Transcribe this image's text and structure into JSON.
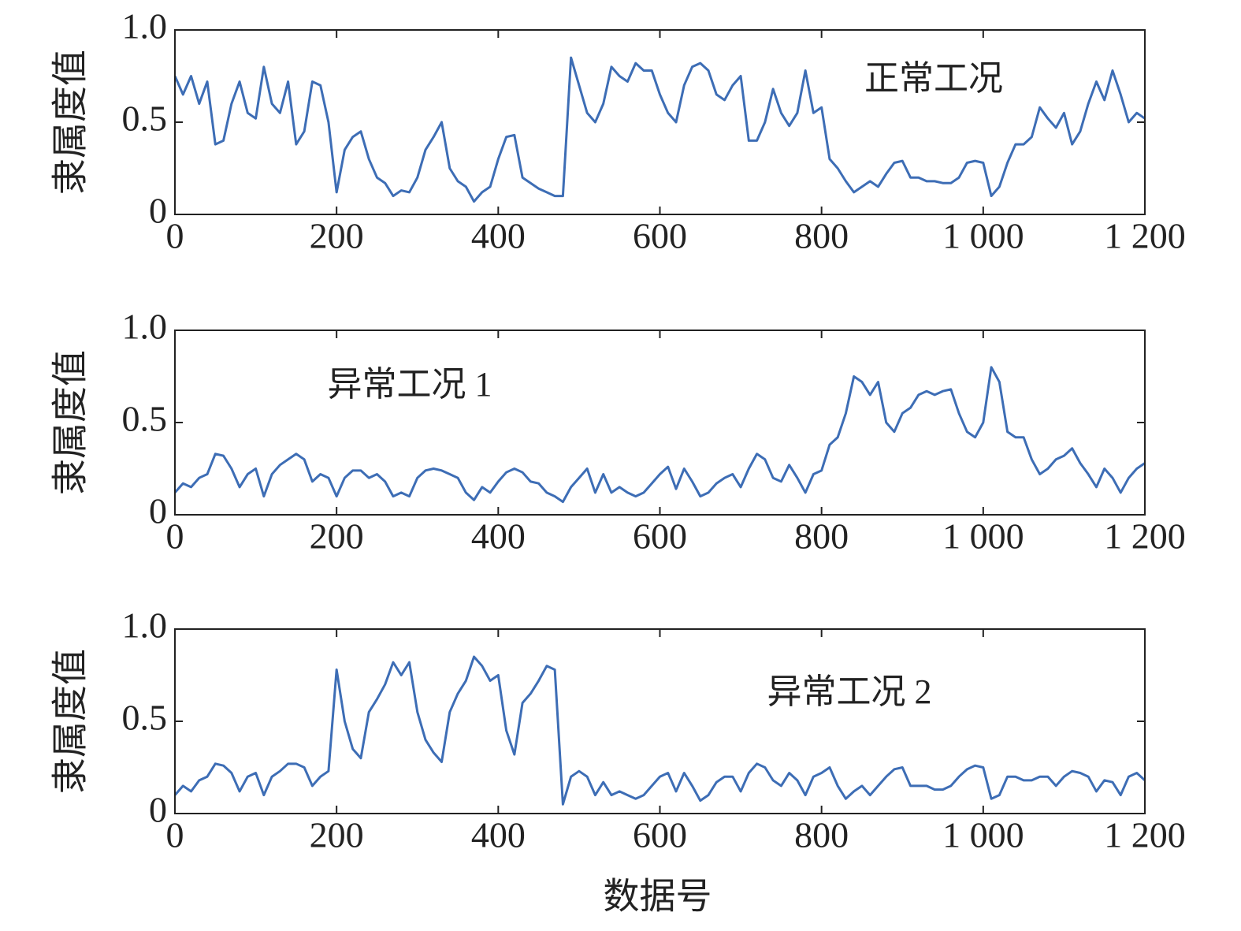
{
  "chart_data": [
    {
      "type": "line",
      "annotation": "正常工况",
      "ylabel": "隶属度值",
      "x": [
        0,
        10,
        20,
        30,
        40,
        50,
        60,
        70,
        80,
        90,
        100,
        110,
        120,
        130,
        140,
        150,
        160,
        170,
        180,
        190,
        200,
        210,
        220,
        230,
        240,
        250,
        260,
        270,
        280,
        290,
        300,
        310,
        320,
        330,
        340,
        350,
        360,
        370,
        380,
        390,
        400,
        410,
        420,
        430,
        440,
        450,
        460,
        470,
        480,
        490,
        500,
        510,
        520,
        530,
        540,
        550,
        560,
        570,
        580,
        590,
        600,
        610,
        620,
        630,
        640,
        650,
        660,
        670,
        680,
        690,
        700,
        710,
        720,
        730,
        740,
        750,
        760,
        770,
        780,
        790,
        800,
        810,
        820,
        830,
        840,
        850,
        860,
        870,
        880,
        890,
        900,
        910,
        920,
        930,
        940,
        950,
        960,
        970,
        980,
        990,
        1000,
        1010,
        1020,
        1030,
        1040,
        1050,
        1060,
        1070,
        1080,
        1090,
        1100,
        1110,
        1120,
        1130,
        1140,
        1150,
        1160,
        1170,
        1180,
        1190,
        1200
      ],
      "series": [
        {
          "color": "#3d6db5",
          "values": [
            0.75,
            0.65,
            0.75,
            0.6,
            0.72,
            0.38,
            0.4,
            0.6,
            0.72,
            0.55,
            0.52,
            0.8,
            0.6,
            0.55,
            0.72,
            0.38,
            0.45,
            0.72,
            0.7,
            0.5,
            0.12,
            0.35,
            0.42,
            0.45,
            0.3,
            0.2,
            0.17,
            0.1,
            0.13,
            0.12,
            0.2,
            0.35,
            0.42,
            0.5,
            0.25,
            0.18,
            0.15,
            0.07,
            0.12,
            0.15,
            0.3,
            0.42,
            0.43,
            0.2,
            0.17,
            0.14,
            0.12,
            0.1,
            0.1,
            0.85,
            0.7,
            0.55,
            0.5,
            0.6,
            0.8,
            0.75,
            0.72,
            0.82,
            0.78,
            0.78,
            0.65,
            0.55,
            0.5,
            0.7,
            0.8,
            0.82,
            0.78,
            0.65,
            0.62,
            0.7,
            0.75,
            0.4,
            0.4,
            0.5,
            0.68,
            0.55,
            0.48,
            0.55,
            0.78,
            0.55,
            0.58,
            0.3,
            0.25,
            0.18,
            0.12,
            0.15,
            0.18,
            0.15,
            0.22,
            0.28,
            0.29,
            0.2,
            0.2,
            0.18,
            0.18,
            0.17,
            0.17,
            0.2,
            0.28,
            0.29,
            0.28,
            0.1,
            0.15,
            0.28,
            0.38,
            0.38,
            0.42,
            0.58,
            0.52,
            0.47,
            0.55,
            0.38,
            0.45,
            0.6,
            0.72,
            0.62,
            0.78,
            0.65,
            0.5,
            0.55,
            0.52
          ]
        }
      ],
      "xlim": [
        0,
        1200
      ],
      "xticks": [
        0,
        200,
        400,
        600,
        800,
        {
          "value": 1000,
          "label": "1 000"
        },
        {
          "value": 1200,
          "label": "1 200"
        }
      ],
      "ylim": [
        0,
        1
      ],
      "yticks": [
        0,
        0.5,
        {
          "value": 1,
          "label": "1.0"
        }
      ]
    },
    {
      "type": "line",
      "annotation": "异常工况 1",
      "ylabel": "隶属度值",
      "x": [
        0,
        10,
        20,
        30,
        40,
        50,
        60,
        70,
        80,
        90,
        100,
        110,
        120,
        130,
        140,
        150,
        160,
        170,
        180,
        190,
        200,
        210,
        220,
        230,
        240,
        250,
        260,
        270,
        280,
        290,
        300,
        310,
        320,
        330,
        340,
        350,
        360,
        370,
        380,
        390,
        400,
        410,
        420,
        430,
        440,
        450,
        460,
        470,
        480,
        490,
        500,
        510,
        520,
        530,
        540,
        550,
        560,
        570,
        580,
        590,
        600,
        610,
        620,
        630,
        640,
        650,
        660,
        670,
        680,
        690,
        700,
        710,
        720,
        730,
        740,
        750,
        760,
        770,
        780,
        790,
        800,
        810,
        820,
        830,
        840,
        850,
        860,
        870,
        880,
        890,
        900,
        910,
        920,
        930,
        940,
        950,
        960,
        970,
        980,
        990,
        1000,
        1010,
        1020,
        1030,
        1040,
        1050,
        1060,
        1070,
        1080,
        1090,
        1100,
        1110,
        1120,
        1130,
        1140,
        1150,
        1160,
        1170,
        1180,
        1190,
        1200
      ],
      "series": [
        {
          "color": "#3d6db5",
          "values": [
            0.12,
            0.17,
            0.15,
            0.2,
            0.22,
            0.33,
            0.32,
            0.25,
            0.15,
            0.22,
            0.25,
            0.1,
            0.22,
            0.27,
            0.3,
            0.33,
            0.3,
            0.18,
            0.22,
            0.2,
            0.1,
            0.2,
            0.24,
            0.24,
            0.2,
            0.22,
            0.18,
            0.1,
            0.12,
            0.1,
            0.2,
            0.24,
            0.25,
            0.24,
            0.22,
            0.2,
            0.12,
            0.08,
            0.15,
            0.12,
            0.18,
            0.23,
            0.25,
            0.23,
            0.18,
            0.17,
            0.12,
            0.1,
            0.07,
            0.15,
            0.2,
            0.25,
            0.12,
            0.22,
            0.12,
            0.15,
            0.12,
            0.1,
            0.12,
            0.17,
            0.22,
            0.26,
            0.14,
            0.25,
            0.18,
            0.1,
            0.12,
            0.17,
            0.2,
            0.22,
            0.15,
            0.25,
            0.33,
            0.3,
            0.2,
            0.18,
            0.27,
            0.2,
            0.12,
            0.22,
            0.24,
            0.38,
            0.42,
            0.55,
            0.75,
            0.72,
            0.65,
            0.72,
            0.5,
            0.45,
            0.55,
            0.58,
            0.65,
            0.67,
            0.65,
            0.67,
            0.68,
            0.55,
            0.45,
            0.42,
            0.5,
            0.8,
            0.72,
            0.45,
            0.42,
            0.42,
            0.3,
            0.22,
            0.25,
            0.3,
            0.32,
            0.36,
            0.28,
            0.22,
            0.15,
            0.25,
            0.2,
            0.12,
            0.2,
            0.25,
            0.28
          ]
        }
      ],
      "xlim": [
        0,
        1200
      ],
      "xticks": [
        0,
        200,
        400,
        600,
        800,
        {
          "value": 1000,
          "label": "1 000"
        },
        {
          "value": 1200,
          "label": "1 200"
        }
      ],
      "ylim": [
        0,
        1
      ],
      "yticks": [
        0,
        0.5,
        {
          "value": 1,
          "label": "1.0"
        }
      ]
    },
    {
      "type": "line",
      "annotation": "异常工况 2",
      "ylabel": "隶属度值",
      "xlabel": "数据号",
      "x": [
        0,
        10,
        20,
        30,
        40,
        50,
        60,
        70,
        80,
        90,
        100,
        110,
        120,
        130,
        140,
        150,
        160,
        170,
        180,
        190,
        200,
        210,
        220,
        230,
        240,
        250,
        260,
        270,
        280,
        290,
        300,
        310,
        320,
        330,
        340,
        350,
        360,
        370,
        380,
        390,
        400,
        410,
        420,
        430,
        440,
        450,
        460,
        470,
        480,
        490,
        500,
        510,
        520,
        530,
        540,
        550,
        560,
        570,
        580,
        590,
        600,
        610,
        620,
        630,
        640,
        650,
        660,
        670,
        680,
        690,
        700,
        710,
        720,
        730,
        740,
        750,
        760,
        770,
        780,
        790,
        800,
        810,
        820,
        830,
        840,
        850,
        860,
        870,
        880,
        890,
        900,
        910,
        920,
        930,
        940,
        950,
        960,
        970,
        980,
        990,
        1000,
        1010,
        1020,
        1030,
        1040,
        1050,
        1060,
        1070,
        1080,
        1090,
        1100,
        1110,
        1120,
        1130,
        1140,
        1150,
        1160,
        1170,
        1180,
        1190,
        1200
      ],
      "series": [
        {
          "color": "#3d6db5",
          "values": [
            0.1,
            0.15,
            0.12,
            0.18,
            0.2,
            0.27,
            0.26,
            0.22,
            0.12,
            0.2,
            0.22,
            0.1,
            0.2,
            0.23,
            0.27,
            0.27,
            0.25,
            0.15,
            0.2,
            0.23,
            0.78,
            0.5,
            0.35,
            0.3,
            0.55,
            0.62,
            0.7,
            0.82,
            0.75,
            0.82,
            0.55,
            0.4,
            0.33,
            0.28,
            0.55,
            0.65,
            0.72,
            0.85,
            0.8,
            0.72,
            0.75,
            0.45,
            0.32,
            0.6,
            0.65,
            0.72,
            0.8,
            0.78,
            0.05,
            0.2,
            0.23,
            0.2,
            0.1,
            0.17,
            0.1,
            0.12,
            0.1,
            0.08,
            0.1,
            0.15,
            0.2,
            0.22,
            0.12,
            0.22,
            0.15,
            0.07,
            0.1,
            0.17,
            0.2,
            0.2,
            0.12,
            0.22,
            0.27,
            0.25,
            0.18,
            0.15,
            0.22,
            0.18,
            0.1,
            0.2,
            0.22,
            0.25,
            0.15,
            0.08,
            0.12,
            0.15,
            0.1,
            0.15,
            0.2,
            0.24,
            0.25,
            0.15,
            0.15,
            0.15,
            0.13,
            0.13,
            0.15,
            0.2,
            0.24,
            0.26,
            0.25,
            0.08,
            0.1,
            0.2,
            0.2,
            0.18,
            0.18,
            0.2,
            0.2,
            0.15,
            0.2,
            0.23,
            0.22,
            0.2,
            0.12,
            0.18,
            0.17,
            0.1,
            0.2,
            0.22,
            0.18
          ]
        }
      ],
      "xlim": [
        0,
        1200
      ],
      "xticks": [
        0,
        200,
        400,
        600,
        800,
        {
          "value": 1000,
          "label": "1 000"
        },
        {
          "value": 1200,
          "label": "1 200"
        }
      ],
      "ylim": [
        0,
        1
      ],
      "yticks": [
        0,
        0.5,
        {
          "value": 1,
          "label": "1.0"
        }
      ]
    }
  ]
}
